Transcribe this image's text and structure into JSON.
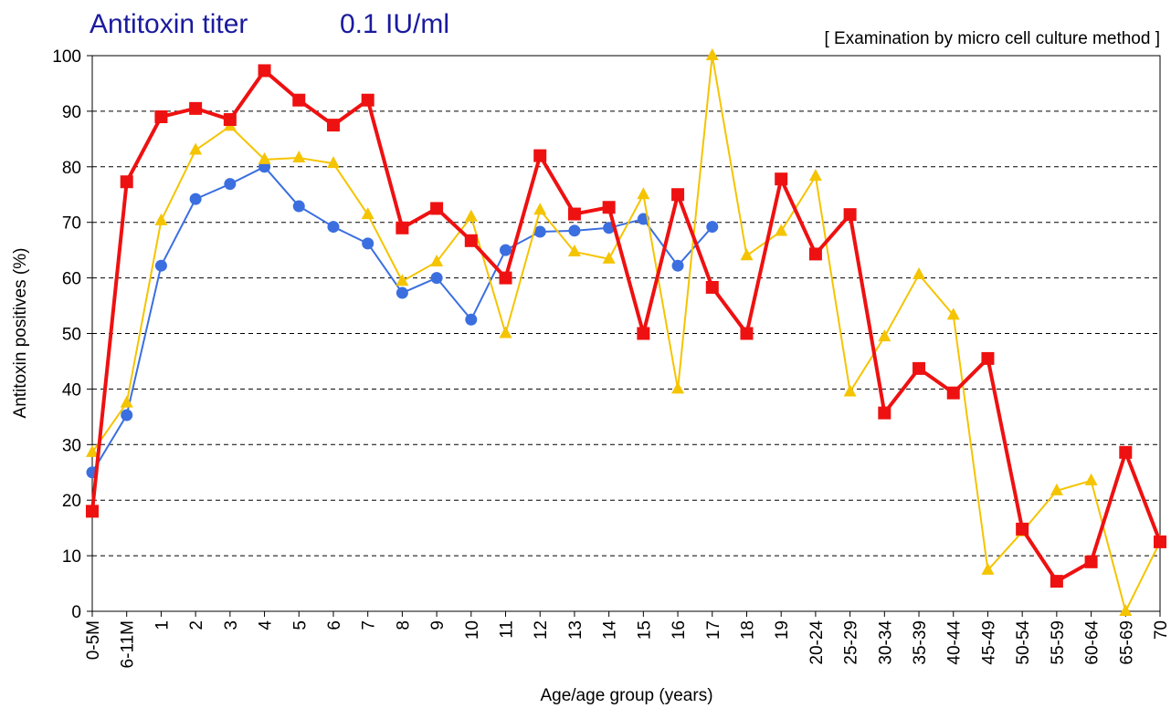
{
  "chart_data": {
    "type": "line",
    "title": "Antitoxin titer",
    "subtitle": "0.1 IU/ml",
    "annotation": "[ Examination by micro cell culture method ]",
    "x_label": "Age/age group (years)",
    "y_label": "Antitoxin positives (%)",
    "categories": [
      "0-5M",
      "6-11M",
      "1",
      "2",
      "3",
      "4",
      "5",
      "6",
      "7",
      "8",
      "9",
      "10",
      "11",
      "12",
      "13",
      "14",
      "15",
      "16",
      "17",
      "18",
      "19",
      "20-24",
      "25-29",
      "30-34",
      "35-39",
      "40-44",
      "45-49",
      "50-54",
      "55-59",
      "60-64",
      "65-69",
      "70"
    ],
    "ylim": [
      0,
      100
    ],
    "yticks": [
      0,
      10,
      20,
      30,
      40,
      50,
      60,
      70,
      80,
      90,
      100
    ],
    "grid": true,
    "series": [
      {
        "color": "#3b6fe0",
        "marker": "circle",
        "values": [
          25,
          35.3,
          62.2,
          74.2,
          76.9,
          80,
          72.9,
          69.2,
          66.2,
          57.3,
          60,
          52.5,
          65,
          68.3,
          68.5,
          69,
          70.6,
          62.2,
          69.2,
          null,
          null,
          null,
          null,
          null,
          null,
          null,
          null,
          null,
          null,
          null,
          null,
          null
        ]
      },
      {
        "color": "#f5c400",
        "marker": "triangle",
        "values": [
          28.6,
          37.5,
          70.3,
          83,
          87.3,
          81.3,
          81.6,
          80.6,
          71.4,
          59.4,
          62.9,
          71,
          50,
          72.2,
          64.7,
          63.4,
          75,
          40,
          100,
          64,
          68.4,
          78.3,
          39.5,
          49.4,
          60.6,
          53.3,
          7.4,
          14.3,
          21.7,
          23.5,
          0,
          12.5
        ]
      },
      {
        "color": "#ee1111",
        "marker": "square",
        "values": [
          18,
          77.3,
          89,
          90.5,
          88.5,
          97.3,
          92,
          87.5,
          92,
          69,
          72.5,
          66.7,
          60,
          82,
          71.5,
          72.7,
          50,
          75,
          58.3,
          50,
          77.8,
          64.3,
          71.4,
          35.7,
          43.7,
          39.3,
          45.5,
          14.8,
          5.4,
          8.9,
          28.6,
          12.5
        ]
      }
    ]
  }
}
